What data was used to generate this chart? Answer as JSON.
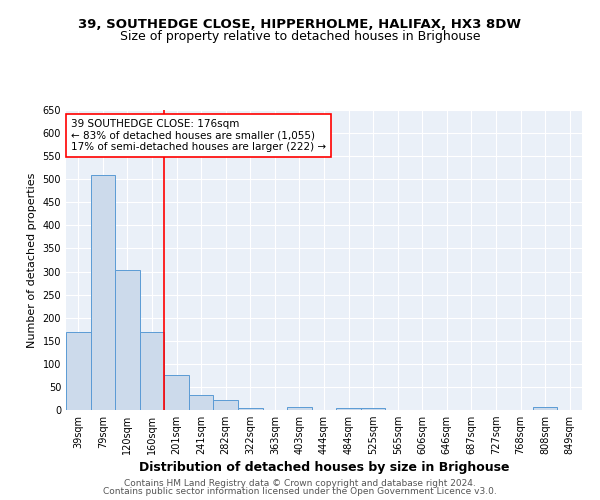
{
  "title1": "39, SOUTHEDGE CLOSE, HIPPERHOLME, HALIFAX, HX3 8DW",
  "title2": "Size of property relative to detached houses in Brighouse",
  "xlabel": "Distribution of detached houses by size in Brighouse",
  "ylabel": "Number of detached properties",
  "categories": [
    "39sqm",
    "79sqm",
    "120sqm",
    "160sqm",
    "201sqm",
    "241sqm",
    "282sqm",
    "322sqm",
    "363sqm",
    "403sqm",
    "444sqm",
    "484sqm",
    "525sqm",
    "565sqm",
    "606sqm",
    "646sqm",
    "687sqm",
    "727sqm",
    "768sqm",
    "808sqm",
    "849sqm"
  ],
  "values": [
    168,
    510,
    303,
    170,
    75,
    33,
    22,
    5,
    1,
    6,
    1,
    5,
    5,
    1,
    0,
    0,
    0,
    0,
    0,
    6,
    0
  ],
  "bar_color": "#ccdaeb",
  "bar_edge_color": "#5b9bd5",
  "annotation_line": "39 SOUTHEDGE CLOSE: 176sqm",
  "annotation_line2": "← 83% of detached houses are smaller (1,055)",
  "annotation_line3": "17% of semi-detached houses are larger (222) →",
  "ylim": [
    0,
    650
  ],
  "yticks": [
    0,
    50,
    100,
    150,
    200,
    250,
    300,
    350,
    400,
    450,
    500,
    550,
    600,
    650
  ],
  "footer1": "Contains HM Land Registry data © Crown copyright and database right 2024.",
  "footer2": "Contains public sector information licensed under the Open Government Licence v3.0.",
  "bg_color": "#eaf0f8",
  "title1_fontsize": 9.5,
  "title2_fontsize": 9,
  "xlabel_fontsize": 9,
  "ylabel_fontsize": 8,
  "tick_fontsize": 7,
  "footer_fontsize": 6.5,
  "annotation_fontsize": 7.5
}
